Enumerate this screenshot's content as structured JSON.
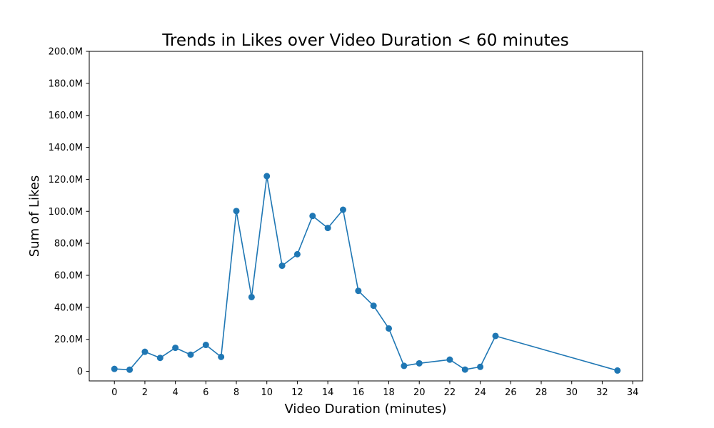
{
  "chart_data": {
    "type": "line",
    "title": "Trends in Likes over Video Duration < 60 minutes",
    "xlabel": "Video Duration (minutes)",
    "ylabel": "Sum of Likes",
    "xlim": [
      -1.65,
      34.65
    ],
    "ylim": [
      -6000000,
      200000000
    ],
    "x_ticks": [
      0,
      2,
      4,
      6,
      8,
      10,
      12,
      14,
      16,
      18,
      20,
      22,
      24,
      26,
      28,
      30,
      32,
      34
    ],
    "x_tick_labels": [
      "0",
      "2",
      "4",
      "6",
      "8",
      "10",
      "12",
      "14",
      "16",
      "18",
      "20",
      "22",
      "24",
      "26",
      "28",
      "30",
      "32",
      "34"
    ],
    "y_ticks": [
      0,
      20000000,
      40000000,
      60000000,
      80000000,
      100000000,
      120000000,
      140000000,
      160000000,
      180000000,
      200000000
    ],
    "y_tick_labels": [
      "0",
      "20.0M",
      "40.0M",
      "60.0M",
      "80.0M",
      "100.0M",
      "120.0M",
      "140.0M",
      "160.0M",
      "180.0M",
      "200.0M"
    ],
    "grid": false,
    "series": [
      {
        "color": "#1f77b4",
        "x": [
          0,
          1,
          2,
          3,
          4,
          5,
          6,
          7,
          8,
          9,
          10,
          11,
          12,
          13,
          14,
          15,
          16,
          17,
          18,
          19,
          20,
          22,
          23,
          24,
          25,
          33
        ],
        "y": [
          1500000,
          1000000,
          12200000,
          8400000,
          14700000,
          10400000,
          16500000,
          9000000,
          100200000,
          46400000,
          122000000,
          66000000,
          73200000,
          97100000,
          89600000,
          101000000,
          50300000,
          41000000,
          26800000,
          3400000,
          5000000,
          7300000,
          1100000,
          2800000,
          22100000,
          500000
        ]
      }
    ]
  }
}
